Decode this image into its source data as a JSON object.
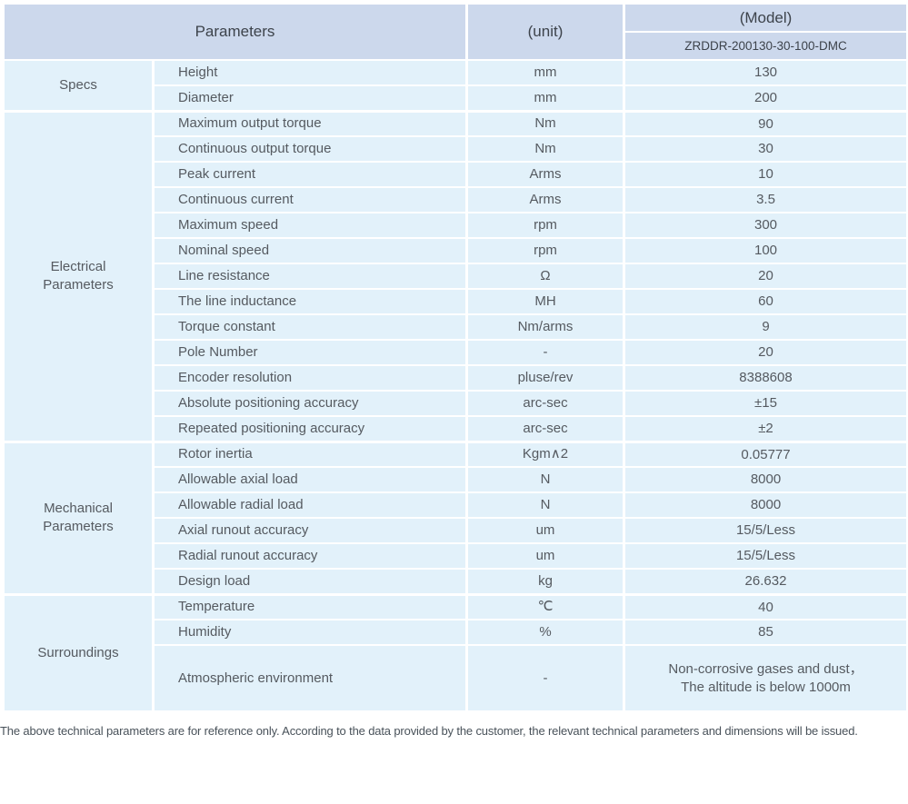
{
  "header": {
    "parameters_label": "Parameters",
    "unit_label": "(unit)",
    "model_label": "(Model)",
    "model_value": "ZRDDR-200130-30-100-DMC"
  },
  "groups": [
    {
      "name": "Specs",
      "rows": [
        {
          "param": "Height",
          "unit": "mm",
          "value": "130"
        },
        {
          "param": "Diameter",
          "unit": "mm",
          "value": "200"
        }
      ]
    },
    {
      "name": "Electrical Parameters",
      "rows": [
        {
          "param": "Maximum output torque",
          "unit": "Nm",
          "value": "90"
        },
        {
          "param": "Continuous output torque",
          "unit": "Nm",
          "value": "30"
        },
        {
          "param": "Peak current",
          "unit": "Arms",
          "value": "10"
        },
        {
          "param": "Continuous current",
          "unit": "Arms",
          "value": "3.5"
        },
        {
          "param": "Maximum speed",
          "unit": "rpm",
          "value": "300"
        },
        {
          "param": "Nominal speed",
          "unit": "rpm",
          "value": "100"
        },
        {
          "param": "Line resistance",
          "unit": "Ω",
          "value": "20"
        },
        {
          "param": "The line inductance",
          "unit": "MH",
          "value": "60"
        },
        {
          "param": "Torque constant",
          "unit": "Nm/arms",
          "value": "9"
        },
        {
          "param": "Pole Number",
          "unit": "-",
          "value": "20"
        },
        {
          "param": "Encoder resolution",
          "unit": "pluse/rev",
          "value": "8388608"
        },
        {
          "param": "Absolute positioning accuracy",
          "unit": "arc-sec",
          "value": "±15"
        },
        {
          "param": "Repeated positioning accuracy",
          "unit": "arc-sec",
          "value": "±2"
        }
      ]
    },
    {
      "name": "Mechanical Parameters",
      "rows": [
        {
          "param": "Rotor inertia",
          "unit": "Kgm∧2",
          "value": "0.05777"
        },
        {
          "param": "Allowable axial load",
          "unit": "N",
          "value": "8000"
        },
        {
          "param": "Allowable radial load",
          "unit": "N",
          "value": "8000"
        },
        {
          "param": "Axial runout accuracy",
          "unit": "um",
          "value": "15/5/Less"
        },
        {
          "param": "Radial runout accuracy",
          "unit": "um",
          "value": "15/5/Less"
        },
        {
          "param": "Design load",
          "unit": "kg",
          "value": "26.632"
        }
      ]
    },
    {
      "name": "Surroundings",
      "rows": [
        {
          "param": "Temperature",
          "unit": "℃",
          "value": "40"
        },
        {
          "param": "Humidity",
          "unit": "%",
          "value": "85"
        },
        {
          "param": "Atmospheric environment",
          "unit": "-",
          "value": "Non-corrosive gases and dust，\nThe altitude is below 1000m",
          "tall": true
        }
      ]
    }
  ],
  "footer": {
    "note": "The above technical parameters are for reference only. According to the data provided by the customer, the relevant technical parameters and dimensions will be issued."
  },
  "colors": {
    "header_bg": "#ccd8ec",
    "row_bg": "#e2f1fa",
    "separator": "#ffffff",
    "body_text": "#555a60",
    "header_text": "#3d434b",
    "footer_text": "#49525a"
  }
}
